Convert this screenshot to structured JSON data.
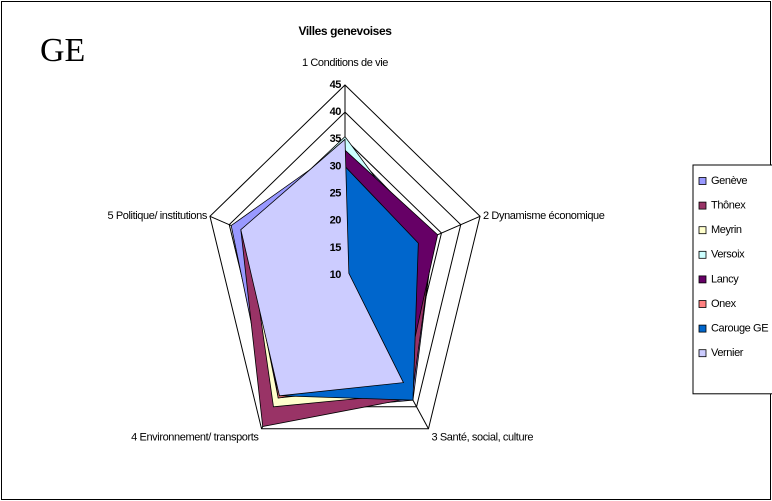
{
  "corner_label": "GE",
  "chart_data": {
    "type": "radar",
    "title": "Villes genevoises",
    "categories": [
      "1 Conditions de vie",
      "2 Dynamisme économique",
      "3 Santé, social, culture",
      "4 Environnement/ transports",
      "5 Politique/ institutions"
    ],
    "ylim": [
      10,
      45
    ],
    "yticks": [
      10,
      15,
      20,
      25,
      30,
      35,
      40,
      45
    ],
    "legend": "right",
    "series": [
      {
        "name": "Genève",
        "color": "#9999ff",
        "values": [
          34,
          33,
          38.5,
          41.5,
          39.5
        ]
      },
      {
        "name": "Thônex",
        "color": "#993366",
        "values": [
          33.5,
          33,
          38,
          44.5,
          37
        ]
      },
      {
        "name": "Meyrin",
        "color": "#ffffcc",
        "values": [
          33,
          27,
          37,
          40,
          35
        ]
      },
      {
        "name": "Versoix",
        "color": "#ccffff",
        "values": [
          35.5,
          30,
          33,
          37,
          36
        ]
      },
      {
        "name": "Lancy",
        "color": "#660066",
        "values": [
          33,
          34,
          35,
          38,
          36
        ]
      },
      {
        "name": "Onex",
        "color": "#ff8080",
        "values": [
          28.5,
          28,
          34,
          38,
          34
        ]
      },
      {
        "name": "Carouge GE",
        "color": "#0066cc",
        "values": [
          30,
          29,
          38.5,
          37.5,
          33.5
        ]
      },
      {
        "name": "Vernier",
        "color": "#ccccff",
        "values": [
          35,
          11,
          34.5,
          37.5,
          37
        ]
      }
    ]
  }
}
